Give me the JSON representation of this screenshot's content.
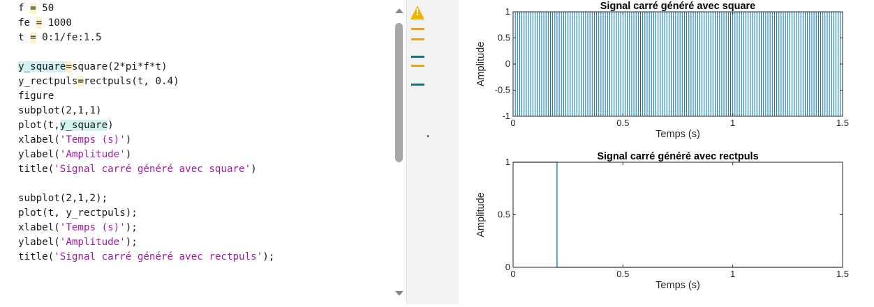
{
  "editor": {
    "lines": [
      [
        {
          "t": "f "
        },
        {
          "t": "=",
          "h": "y"
        },
        {
          "t": " 50"
        }
      ],
      [
        {
          "t": "fe "
        },
        {
          "t": "=",
          "h": "y"
        },
        {
          "t": " 1000"
        }
      ],
      [
        {
          "t": "t "
        },
        {
          "t": "=",
          "h": "y"
        },
        {
          "t": " 0:1/fe:1.5"
        }
      ],
      [],
      [
        {
          "t": "y_square",
          "h": "c"
        },
        {
          "t": "=",
          "h": "y"
        },
        {
          "t": "square(2*pi*f*t)"
        }
      ],
      [
        {
          "t": "y_rectpuls"
        },
        {
          "t": "=",
          "h": "y"
        },
        {
          "t": "rectpuls(t, 0.4)"
        }
      ],
      [
        {
          "t": "figure"
        }
      ],
      [
        {
          "t": "subplot(2,1,1)"
        }
      ],
      [
        {
          "t": "plot(t,"
        },
        {
          "t": "y_square",
          "h": "c"
        },
        {
          "t": ")"
        }
      ],
      [
        {
          "t": "xlabel("
        },
        {
          "t": "'Temps (s)'",
          "s": 1
        },
        {
          "t": ")"
        }
      ],
      [
        {
          "t": "ylabel("
        },
        {
          "t": "'Amplitude'",
          "s": 1
        },
        {
          "t": ")"
        }
      ],
      [
        {
          "t": "title("
        },
        {
          "t": "'Signal carré généré avec square'",
          "s": 1
        },
        {
          "t": ")"
        }
      ],
      [],
      [
        {
          "t": "subplot(2,1,2);"
        }
      ],
      [
        {
          "t": "plot(t, y_rectpuls);"
        }
      ],
      [
        {
          "t": "xlabel("
        },
        {
          "t": "'Temps (s)'",
          "s": 1
        },
        {
          "t": ");"
        }
      ],
      [
        {
          "t": "ylabel("
        },
        {
          "t": "'Amplitude'",
          "s": 1
        },
        {
          "t": ");"
        }
      ],
      [
        {
          "t": "title("
        },
        {
          "t": "'Signal carré généré avec rectpuls'",
          "s": 1
        },
        {
          "t": ");"
        }
      ]
    ],
    "gutter_marks": [
      "warning",
      "yellow",
      "yellow",
      "teal",
      "yellow",
      "teal"
    ],
    "colors": {
      "string": "#a31aa3",
      "highlight_yellow": "#fdf1c8",
      "highlight_teal": "#d2f2ef",
      "warning": "#f0b400",
      "plot_line": "#0072bd"
    }
  },
  "warning_glyph": "!",
  "chart_data": [
    {
      "type": "line",
      "title": "Signal carré généré avec square",
      "xlabel": "Temps (s)",
      "ylabel": "Amplitude",
      "xlim": [
        0,
        1.5
      ],
      "ylim": [
        -1,
        1
      ],
      "xticks": [
        "0",
        "0.5",
        "1",
        "1.5"
      ],
      "yticks": [
        "-1",
        "-0.5",
        "0",
        "0.5",
        "1"
      ],
      "signal": {
        "kind": "square",
        "frequency_hz": 50,
        "sample_rate_hz": 1000,
        "t_start": 0,
        "t_end": 1.5,
        "amplitude_low": -1,
        "amplitude_high": 1
      },
      "grid": false
    },
    {
      "type": "line",
      "title": "Signal carré généré avec rectpuls",
      "xlabel": "Temps (s)",
      "ylabel": "Amplitude",
      "xlim": [
        0,
        1.5
      ],
      "ylim": [
        0,
        1
      ],
      "xticks": [
        "0",
        "0.5",
        "1",
        "1.5"
      ],
      "yticks": [
        "0",
        "0.5",
        "1"
      ],
      "x": [
        0,
        0.2,
        0.2,
        1.5
      ],
      "y": [
        1,
        1,
        0,
        0
      ],
      "grid": false
    }
  ]
}
